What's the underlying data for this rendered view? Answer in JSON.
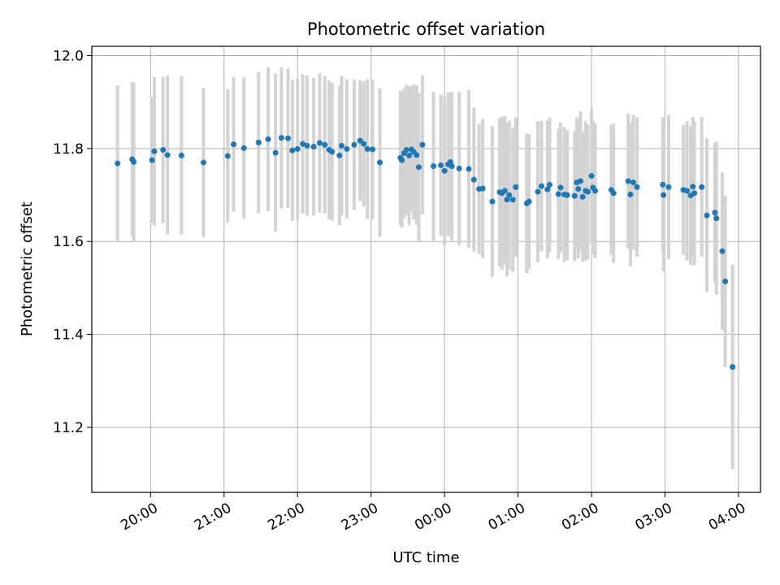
{
  "chart_data": {
    "type": "scatter",
    "title": "Photometric offset variation",
    "xlabel": "UTC time",
    "ylabel": "Photometric offset",
    "x_unit": "hours (UTC clock time; values above 24 are after midnight)",
    "xlim": [
      19.2,
      28.3
    ],
    "ylim": [
      11.06,
      12.02
    ],
    "xticks": [
      {
        "value": 20,
        "label": "20:00"
      },
      {
        "value": 21,
        "label": "21:00"
      },
      {
        "value": 22,
        "label": "22:00"
      },
      {
        "value": 23,
        "label": "23:00"
      },
      {
        "value": 24,
        "label": "00:00"
      },
      {
        "value": 25,
        "label": "01:00"
      },
      {
        "value": 26,
        "label": "02:00"
      },
      {
        "value": 27,
        "label": "03:00"
      },
      {
        "value": 28,
        "label": "04:00"
      }
    ],
    "yticks": [
      {
        "value": 11.2,
        "label": "11.2"
      },
      {
        "value": 11.4,
        "label": "11.4"
      },
      {
        "value": 11.6,
        "label": "11.6"
      },
      {
        "value": 11.8,
        "label": "11.8"
      },
      {
        "value": 12.0,
        "label": "12.0"
      }
    ],
    "grid": true,
    "marker_color": "#1f77b4",
    "errorbar_color": "#d3d3d3",
    "points": [
      [
        19.55,
        11.768,
        0.168
      ],
      [
        19.75,
        11.777,
        0.166
      ],
      [
        19.77,
        11.771,
        0.171
      ],
      [
        20.02,
        11.775,
        0.135
      ],
      [
        20.05,
        11.794,
        0.16
      ],
      [
        20.17,
        11.797,
        0.157
      ],
      [
        20.23,
        11.786,
        0.171
      ],
      [
        20.42,
        11.785,
        0.17
      ],
      [
        20.72,
        11.77,
        0.16
      ],
      [
        21.05,
        11.784,
        0.143
      ],
      [
        21.13,
        11.809,
        0.145
      ],
      [
        21.27,
        11.801,
        0.152
      ],
      [
        21.47,
        11.813,
        0.152
      ],
      [
        21.6,
        11.82,
        0.155
      ],
      [
        21.7,
        11.791,
        0.17
      ],
      [
        21.78,
        11.823,
        0.152
      ],
      [
        21.87,
        11.822,
        0.15
      ],
      [
        21.93,
        11.796,
        0.152
      ],
      [
        22.0,
        11.799,
        0.152
      ],
      [
        22.07,
        11.81,
        0.15
      ],
      [
        22.13,
        11.806,
        0.151
      ],
      [
        22.22,
        11.804,
        0.148
      ],
      [
        22.3,
        11.812,
        0.15
      ],
      [
        22.37,
        11.808,
        0.148
      ],
      [
        22.43,
        11.797,
        0.15
      ],
      [
        22.47,
        11.793,
        0.148
      ],
      [
        22.57,
        11.785,
        0.15
      ],
      [
        22.6,
        11.806,
        0.15
      ],
      [
        22.67,
        11.799,
        0.15
      ],
      [
        22.77,
        11.808,
        0.14
      ],
      [
        22.85,
        11.817,
        0.13
      ],
      [
        22.9,
        11.81,
        0.135
      ],
      [
        22.95,
        11.799,
        0.15
      ],
      [
        23.02,
        11.798,
        0.15
      ],
      [
        23.12,
        11.77,
        0.16
      ],
      [
        23.4,
        11.78,
        0.145
      ],
      [
        23.42,
        11.775,
        0.145
      ],
      [
        23.45,
        11.79,
        0.14
      ],
      [
        23.48,
        11.797,
        0.14
      ],
      [
        23.52,
        11.785,
        0.15
      ],
      [
        23.55,
        11.798,
        0.135
      ],
      [
        23.58,
        11.793,
        0.145
      ],
      [
        23.62,
        11.786,
        0.15
      ],
      [
        23.65,
        11.76,
        0.16
      ],
      [
        23.7,
        11.808,
        0.15
      ],
      [
        23.85,
        11.762,
        0.16
      ],
      [
        23.95,
        11.764,
        0.152
      ],
      [
        24.0,
        11.752,
        0.16
      ],
      [
        24.05,
        11.766,
        0.155
      ],
      [
        24.08,
        11.771,
        0.15
      ],
      [
        24.1,
        11.762,
        0.16
      ],
      [
        24.2,
        11.757,
        0.165
      ],
      [
        24.33,
        11.756,
        0.17
      ],
      [
        24.4,
        11.733,
        0.155
      ],
      [
        24.47,
        11.713,
        0.14
      ],
      [
        24.52,
        11.714,
        0.15
      ],
      [
        24.65,
        11.686,
        0.162
      ],
      [
        24.75,
        11.706,
        0.16
      ],
      [
        24.78,
        11.704,
        0.165
      ],
      [
        24.82,
        11.709,
        0.16
      ],
      [
        24.85,
        11.69,
        0.165
      ],
      [
        24.88,
        11.7,
        0.16
      ],
      [
        24.93,
        11.69,
        0.155
      ],
      [
        24.97,
        11.717,
        0.15
      ],
      [
        25.12,
        11.682,
        0.15
      ],
      [
        25.15,
        11.686,
        0.145
      ],
      [
        25.27,
        11.707,
        0.152
      ],
      [
        25.32,
        11.719,
        0.14
      ],
      [
        25.4,
        11.712,
        0.148
      ],
      [
        25.43,
        11.722,
        0.145
      ],
      [
        25.55,
        11.702,
        0.14
      ],
      [
        25.58,
        11.716,
        0.14
      ],
      [
        25.63,
        11.701,
        0.145
      ],
      [
        25.67,
        11.7,
        0.14
      ],
      [
        25.77,
        11.698,
        0.14
      ],
      [
        25.8,
        11.727,
        0.14
      ],
      [
        25.82,
        11.713,
        0.15
      ],
      [
        25.85,
        11.73,
        0.15
      ],
      [
        25.88,
        11.696,
        0.14
      ],
      [
        25.92,
        11.709,
        0.15
      ],
      [
        25.95,
        11.707,
        0.145
      ],
      [
        26.0,
        11.741,
        0.145
      ],
      [
        26.02,
        11.716,
        0.145
      ],
      [
        26.05,
        11.709,
        0.145
      ],
      [
        26.27,
        11.711,
        0.14
      ],
      [
        26.3,
        11.704,
        0.15
      ],
      [
        26.5,
        11.73,
        0.145
      ],
      [
        26.53,
        11.701,
        0.155
      ],
      [
        26.57,
        11.727,
        0.145
      ],
      [
        26.62,
        11.717,
        0.15
      ],
      [
        26.97,
        11.722,
        0.145
      ],
      [
        26.98,
        11.7,
        0.165
      ],
      [
        27.05,
        11.717,
        0.155
      ],
      [
        27.25,
        11.711,
        0.14
      ],
      [
        27.3,
        11.709,
        0.15
      ],
      [
        27.35,
        11.699,
        0.15
      ],
      [
        27.38,
        11.718,
        0.15
      ],
      [
        27.4,
        11.704,
        0.155
      ],
      [
        27.5,
        11.717,
        0.15
      ],
      [
        27.57,
        11.656,
        0.165
      ],
      [
        27.68,
        11.662,
        0.15
      ],
      [
        27.7,
        11.65,
        0.165
      ],
      [
        27.78,
        11.579,
        0.17
      ],
      [
        27.82,
        11.514,
        0.185
      ],
      [
        27.92,
        11.33,
        0.22
      ]
    ]
  }
}
